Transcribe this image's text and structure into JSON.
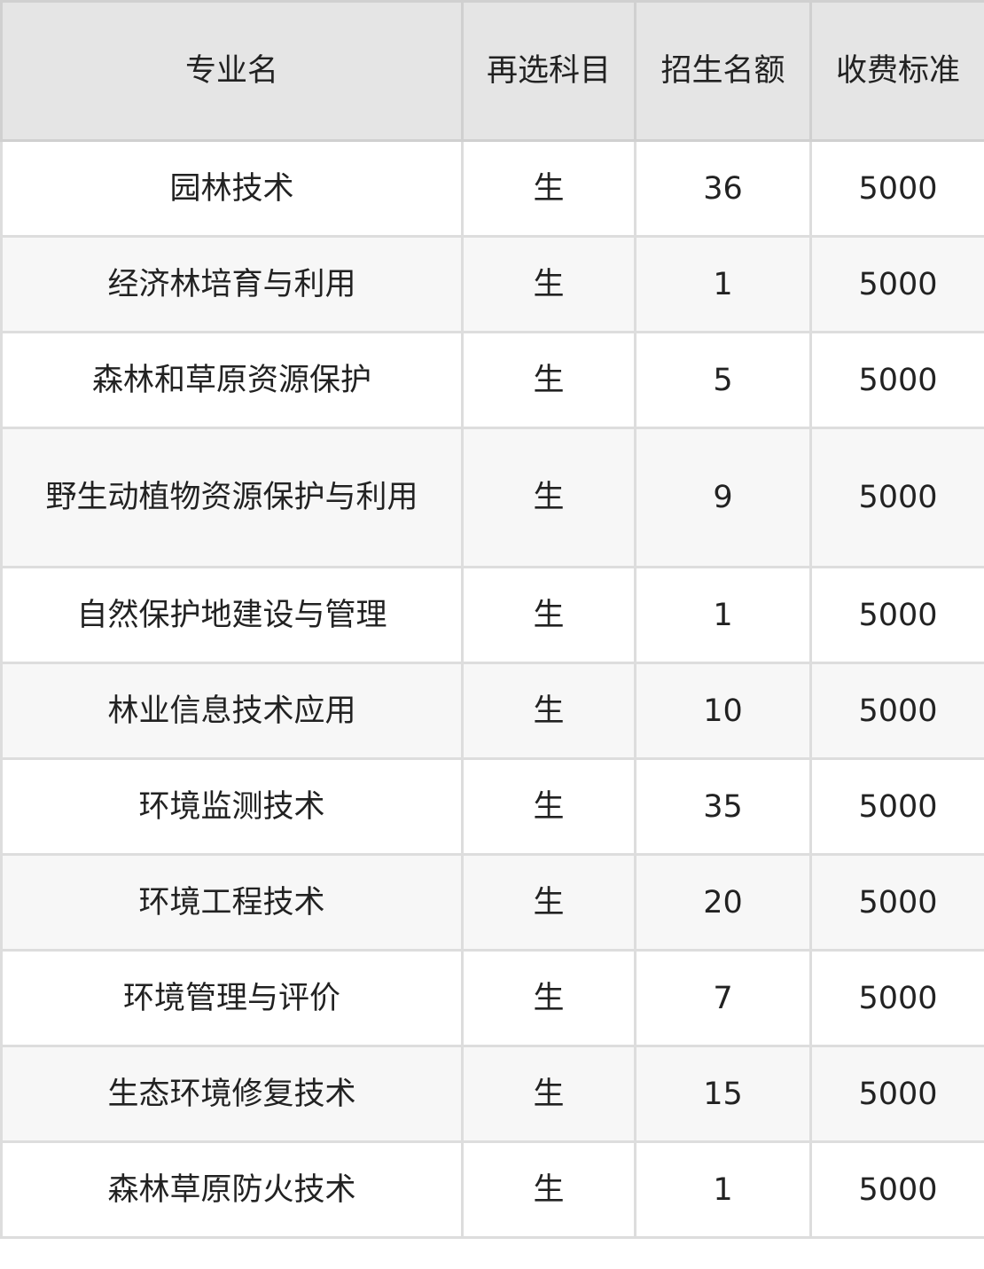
{
  "table": {
    "headers": [
      "专业名",
      "再选科目",
      "招生名额",
      "收费标准"
    ],
    "rows": [
      [
        "园林技术",
        "生",
        "36",
        "5000"
      ],
      [
        "经济林培育与利用",
        "生",
        "1",
        "5000"
      ],
      [
        "森林和草原资源保护",
        "生",
        "5",
        "5000"
      ],
      [
        "野生动植物资源保护与利用",
        "生",
        "9",
        "5000"
      ],
      [
        "自然保护地建设与管理",
        "生",
        "1",
        "5000"
      ],
      [
        "林业信息技术应用",
        "生",
        "10",
        "5000"
      ],
      [
        "环境监测技术",
        "生",
        "35",
        "5000"
      ],
      [
        "环境工程技术",
        "生",
        "20",
        "5000"
      ],
      [
        "环境管理与评价",
        "生",
        "7",
        "5000"
      ],
      [
        "生态环境修复技术",
        "生",
        "15",
        "5000"
      ],
      [
        "森林草原防火技术",
        "生",
        "1",
        "5000"
      ]
    ]
  }
}
